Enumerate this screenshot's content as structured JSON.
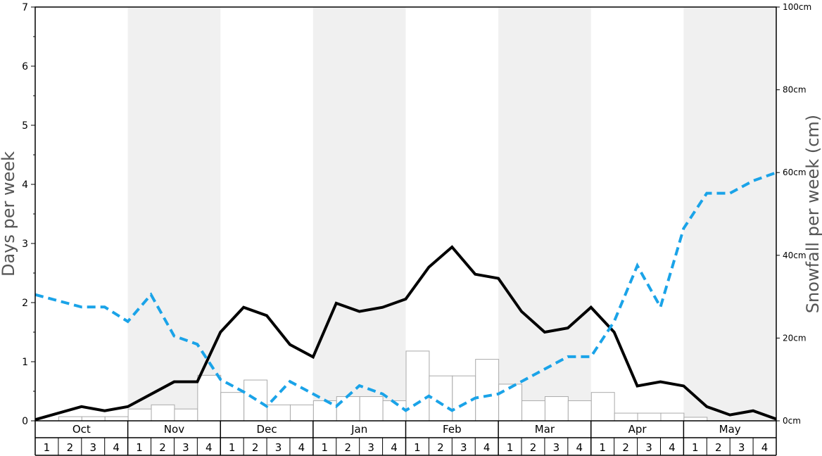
{
  "chart_data": {
    "type": "bar+line",
    "xlabel": "",
    "ylabel_left": "Days per week",
    "ylabel_right": "Snowfall per week (cm)",
    "left_axis": {
      "ylim": [
        0,
        7
      ],
      "ticks": [
        "0",
        "1",
        "2",
        "3",
        "4",
        "5",
        "6",
        "7"
      ]
    },
    "right_axis": {
      "ylim": [
        0,
        100
      ],
      "ticks": [
        "0cm",
        "20cm",
        "40cm",
        "60cm",
        "80cm",
        "100cm"
      ],
      "tick_values": [
        0,
        20,
        40,
        60,
        80,
        100
      ]
    },
    "months": [
      "Oct",
      "Nov",
      "Dec",
      "Jan",
      "Feb",
      "Mar",
      "Apr",
      "May"
    ],
    "weeks": [
      "1",
      "2",
      "3",
      "4"
    ],
    "grid": false,
    "shaded_months": [
      "Nov",
      "Jan",
      "Mar",
      "May"
    ],
    "colors": {
      "shade": "#f0f0f0",
      "bar_fill": "#ffffff",
      "bar_stroke": "#aaaaaa",
      "snow_days_line": "#000000",
      "snowfall_line": "#1aa3e8",
      "axis_title": "#555555"
    },
    "series": [
      {
        "kind": "bar",
        "axis": "left",
        "values": [
          0,
          0.07,
          0.07,
          0.07,
          0.2,
          0.27,
          0.2,
          0.77,
          0.48,
          0.69,
          0.27,
          0.27,
          0.34,
          0.41,
          0.41,
          0.34,
          1.18,
          0.76,
          0.76,
          1.04,
          0.62,
          0.34,
          0.41,
          0.34,
          0.48,
          0.13,
          0.13,
          0.13,
          0.06,
          0,
          0,
          0
        ]
      },
      {
        "kind": "line",
        "axis": "left",
        "style": "solid",
        "values": [
          0.02,
          0.13,
          0.24,
          0.17,
          0.24,
          0.45,
          0.66,
          0.66,
          1.5,
          1.92,
          1.78,
          1.29,
          1.08,
          1.99,
          1.85,
          1.92,
          2.06,
          2.6,
          2.94,
          2.48,
          2.41,
          1.85,
          1.5,
          1.57,
          1.92,
          1.5,
          0.59,
          0.66,
          0.59,
          0.24,
          0.1,
          0.17,
          0.03
        ]
      },
      {
        "kind": "line",
        "axis": "right",
        "style": "dashed",
        "values": [
          30.5,
          29,
          27.5,
          27.5,
          24,
          30.5,
          20.5,
          18.5,
          10,
          7,
          3.5,
          9.5,
          6.5,
          3.5,
          8.5,
          6.5,
          2.5,
          6,
          2.5,
          5.5,
          6.5,
          9.5,
          12.5,
          15.5,
          15.5,
          24,
          37.5,
          27.5,
          46.5,
          55,
          55,
          58,
          60
        ]
      }
    ]
  }
}
